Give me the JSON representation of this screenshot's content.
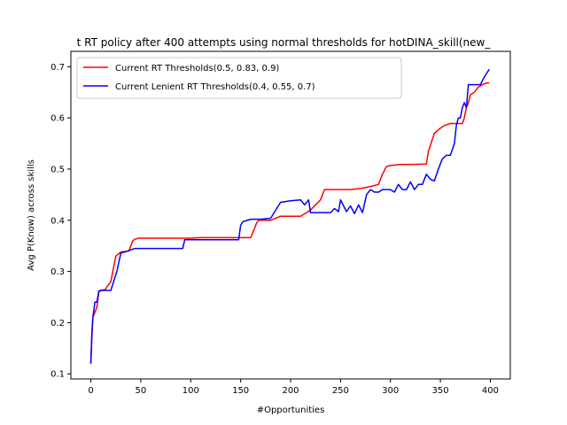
{
  "chart_data": {
    "type": "line",
    "title": "t RT policy after 400 attempts using normal thresholds for hotDINA_skill(new_",
    "xlabel": "#Opportunities",
    "ylabel": "Avg P(Know) across skills",
    "xlim": [
      -20,
      420
    ],
    "ylim": [
      0.09,
      0.73
    ],
    "xticks": [
      "0",
      "50",
      "100",
      "150",
      "200",
      "250",
      "300",
      "350",
      "400"
    ],
    "yticks": [
      "0.1",
      "0.2",
      "0.3",
      "0.4",
      "0.5",
      "0.6",
      "0.7"
    ],
    "grid": false,
    "legend_position": "top-left",
    "series": [
      {
        "name": "Current RT Thresholds(0.5, 0.83, 0.9)",
        "color": "#ff0000",
        "x": [
          0,
          1,
          2,
          4,
          6,
          8,
          10,
          12,
          14,
          20,
          25,
          30,
          38,
          42,
          44,
          48,
          60,
          80,
          100,
          110,
          150,
          160,
          162,
          164,
          166,
          168,
          170,
          180,
          190,
          200,
          210,
          220,
          230,
          234,
          240,
          260,
          270,
          280,
          288,
          292,
          296,
          300,
          310,
          320,
          336,
          338,
          344,
          350,
          354,
          360,
          364,
          368,
          372,
          374,
          376,
          378,
          380,
          384,
          388,
          392,
          396,
          399
        ],
        "y": [
          0.12,
          0.17,
          0.21,
          0.22,
          0.23,
          0.26,
          0.263,
          0.264,
          0.264,
          0.28,
          0.33,
          0.338,
          0.34,
          0.36,
          0.363,
          0.365,
          0.365,
          0.365,
          0.365,
          0.366,
          0.366,
          0.366,
          0.375,
          0.385,
          0.395,
          0.4,
          0.4,
          0.4,
          0.408,
          0.408,
          0.408,
          0.42,
          0.44,
          0.46,
          0.46,
          0.46,
          0.462,
          0.466,
          0.47,
          0.49,
          0.505,
          0.507,
          0.509,
          0.509,
          0.51,
          0.535,
          0.57,
          0.58,
          0.585,
          0.589,
          0.589,
          0.589,
          0.589,
          0.6,
          0.62,
          0.63,
          0.645,
          0.65,
          0.66,
          0.665,
          0.668,
          0.668
        ]
      },
      {
        "name": "Current Lenient RT Thresholds(0.4, 0.55, 0.7)",
        "color": "#0000ff",
        "x": [
          0,
          1,
          2,
          4,
          6,
          8,
          10,
          14,
          20,
          26,
          30,
          34,
          40,
          44,
          48,
          60,
          80,
          92,
          94,
          100,
          120,
          148,
          150,
          152,
          160,
          170,
          180,
          190,
          200,
          210,
          214,
          218,
          220,
          226,
          230,
          240,
          244,
          248,
          250,
          256,
          260,
          264,
          268,
          272,
          276,
          280,
          284,
          288,
          292,
          296,
          300,
          304,
          308,
          312,
          316,
          320,
          324,
          328,
          332,
          336,
          340,
          344,
          348,
          352,
          356,
          360,
          364,
          366,
          368,
          370,
          372,
          374,
          376,
          378,
          382,
          386,
          390,
          394,
          399
        ],
        "y": [
          0.12,
          0.18,
          0.21,
          0.24,
          0.24,
          0.262,
          0.263,
          0.263,
          0.263,
          0.3,
          0.336,
          0.338,
          0.342,
          0.345,
          0.345,
          0.345,
          0.345,
          0.345,
          0.362,
          0.362,
          0.362,
          0.362,
          0.39,
          0.397,
          0.402,
          0.402,
          0.404,
          0.435,
          0.438,
          0.44,
          0.43,
          0.44,
          0.415,
          0.415,
          0.415,
          0.415,
          0.423,
          0.417,
          0.44,
          0.417,
          0.428,
          0.413,
          0.43,
          0.415,
          0.45,
          0.46,
          0.455,
          0.455,
          0.46,
          0.46,
          0.46,
          0.455,
          0.47,
          0.46,
          0.46,
          0.475,
          0.46,
          0.47,
          0.47,
          0.49,
          0.48,
          0.477,
          0.5,
          0.52,
          0.527,
          0.527,
          0.55,
          0.585,
          0.6,
          0.6,
          0.62,
          0.63,
          0.62,
          0.665,
          0.665,
          0.665,
          0.665,
          0.68,
          0.695
        ]
      }
    ]
  }
}
